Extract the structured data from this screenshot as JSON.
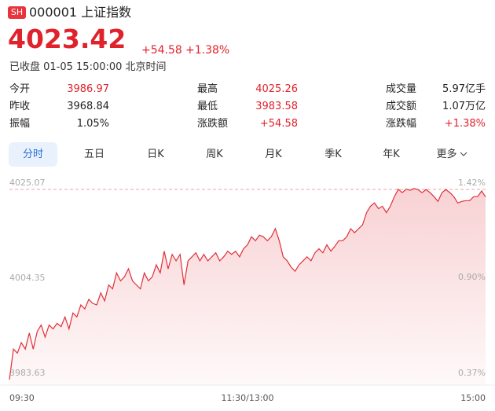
{
  "header": {
    "badge": "SH",
    "name": "000001 上证指数",
    "price": "4023.42",
    "change": "+54.58",
    "change_pct": "+1.38%",
    "status": "已收盘 01-05 15:00:00 北京时间"
  },
  "stats": [
    [
      {
        "label": "今开",
        "value": "3986.97"
      },
      {
        "label": "最高",
        "value": "4025.26"
      },
      {
        "label": "成交量",
        "value": "5.97亿手"
      }
    ],
    [
      {
        "label": "昨收",
        "value": "3968.84"
      },
      {
        "label": "最低",
        "value": "3983.58"
      },
      {
        "label": "成交额",
        "value": "1.07万亿"
      }
    ],
    [
      {
        "label": "振幅",
        "value": "1.05%"
      },
      {
        "label": "涨跌额",
        "value": "+54.58"
      },
      {
        "label": "涨跌幅",
        "value": "+1.38%"
      }
    ]
  ],
  "tabs": [
    "分时",
    "五日",
    "日K",
    "周K",
    "月K",
    "季K",
    "年K",
    "更多"
  ],
  "chart_data": {
    "type": "line",
    "color": "#e0303a",
    "x": [
      0,
      2,
      4,
      6,
      8,
      10,
      12,
      14,
      16,
      18,
      20,
      22,
      24,
      26,
      28,
      30,
      32,
      34,
      36,
      38,
      40,
      42,
      44,
      46,
      48,
      50,
      52,
      54,
      56,
      58,
      60,
      62,
      64,
      66,
      68,
      70,
      72,
      74,
      76,
      78,
      80,
      82,
      84,
      86,
      88,
      90,
      92,
      94,
      96,
      98,
      100,
      102,
      104,
      106,
      108,
      110,
      112,
      114,
      116,
      118,
      120,
      122,
      124,
      126,
      128,
      130,
      132,
      134,
      136,
      138,
      140,
      142,
      144,
      146,
      148,
      150,
      152,
      154,
      156,
      158,
      160,
      162,
      164,
      166,
      168,
      170,
      172,
      174,
      176,
      178,
      180,
      182,
      184,
      186,
      188,
      190,
      192,
      194,
      196,
      198,
      200,
      202,
      204,
      206,
      208,
      210,
      212,
      214,
      216,
      218,
      220,
      222,
      224,
      226,
      228,
      230,
      232,
      234,
      236,
      238,
      240
    ],
    "values": [
      3983.63,
      3990.27,
      3989.4,
      3991.67,
      3990.27,
      3993.77,
      3990.27,
      3994.12,
      3995.52,
      3992.9,
      3995.52,
      3994.65,
      3995.87,
      3995.17,
      3997.27,
      3994.65,
      3998.14,
      3997.27,
      3999.89,
      3999.02,
      4001.12,
      4000.24,
      3999.89,
      4002.51,
      4000.77,
      4004.26,
      4003.39,
      4006.89,
      4005.14,
      4006.01,
      4007.76,
      4005.14,
      4004.26,
      4003.39,
      4006.89,
      4005.14,
      4006.01,
      4008.63,
      4006.89,
      4011.61,
      4007.76,
      4010.91,
      4009.51,
      4010.91,
      4004.26,
      4009.51,
      4010.38,
      4011.26,
      4009.51,
      4010.91,
      4009.51,
      4010.38,
      4011.26,
      4009.51,
      4010.38,
      4011.61,
      4010.91,
      4011.61,
      4010.38,
      4012.13,
      4013.0,
      4014.75,
      4013.88,
      4015.1,
      4014.75,
      4013.88,
      4014.75,
      4016.5,
      4013.88,
      4010.38,
      4009.51,
      4008.11,
      4007.23,
      4008.63,
      4009.51,
      4010.38,
      4009.51,
      4011.26,
      4012.13,
      4011.26,
      4013.0,
      4011.61,
      4012.66,
      4013.88,
      4013.88,
      4014.75,
      4016.5,
      4015.63,
      4016.5,
      4017.38,
      4020.0,
      4021.4,
      4022.1,
      4020.87,
      4021.4,
      4020.0,
      4021.4,
      4023.5,
      4025.1,
      4024.37,
      4025.1,
      4024.89,
      4025.26,
      4025.0,
      4024.37,
      4025.05,
      4024.37,
      4023.5,
      4022.45,
      4024.37,
      4025.05,
      4024.37,
      4023.5,
      4022.1,
      4022.45,
      4022.62,
      4022.62,
      4023.5,
      4023.5,
      4024.72,
      4023.42
    ],
    "xlim": [
      0,
      240
    ],
    "xticks": [
      {
        "value": 0,
        "label": "09:30"
      },
      {
        "value": 120,
        "label": "11:30/13:00"
      },
      {
        "value": 240,
        "label": "15:00"
      }
    ],
    "ylim": [
      3983.63,
      4025.07
    ],
    "yticks": [
      3983.63,
      4004.35,
      4025.07
    ],
    "y2lim": [
      0.37,
      1.42
    ],
    "y2ticks": [
      {
        "value": 0.37,
        "label": "0.37%"
      },
      {
        "value": 0.9,
        "label": "0.90%"
      },
      {
        "value": 1.42,
        "label": "1.42%"
      }
    ]
  }
}
